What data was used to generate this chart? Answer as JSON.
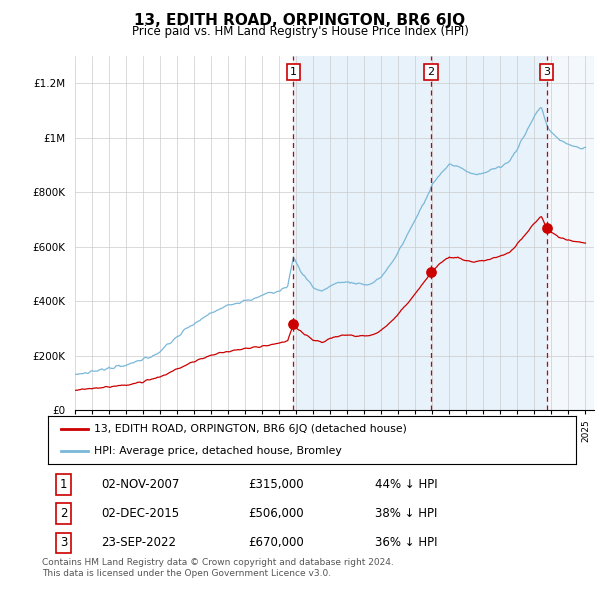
{
  "title": "13, EDITH ROAD, ORPINGTON, BR6 6JQ",
  "subtitle": "Price paid vs. HM Land Registry's House Price Index (HPI)",
  "ylabel_ticks": [
    "£0",
    "£200K",
    "£400K",
    "£600K",
    "£800K",
    "£1M",
    "£1.2M"
  ],
  "ytick_values": [
    0,
    200000,
    400000,
    600000,
    800000,
    1000000,
    1200000
  ],
  "ylim": [
    0,
    1300000
  ],
  "legend_line1": "13, EDITH ROAD, ORPINGTON, BR6 6JQ (detached house)",
  "legend_line2": "HPI: Average price, detached house, Bromley",
  "sale1_date": 2007.83,
  "sale1_price": 315000,
  "sale2_date": 2015.92,
  "sale2_price": 506000,
  "sale3_date": 2022.72,
  "sale3_price": 670000,
  "note1": "02-NOV-2007",
  "note1_price": "£315,000",
  "note1_hpi": "44% ↓ HPI",
  "note2": "02-DEC-2015",
  "note2_price": "£506,000",
  "note2_hpi": "38% ↓ HPI",
  "note3": "23-SEP-2022",
  "note3_price": "£670,000",
  "note3_hpi": "36% ↓ HPI",
  "footer1": "Contains HM Land Registry data © Crown copyright and database right 2024.",
  "footer2": "This data is licensed under the Open Government Licence v3.0.",
  "hpi_color": "#7ab8d9",
  "price_color": "#cc0000",
  "vline_color": "#cc0000",
  "shade_color": "#ddeeff",
  "grid_color": "#cccccc",
  "label_fontsize": 8.5,
  "tick_fontsize": 7.5
}
